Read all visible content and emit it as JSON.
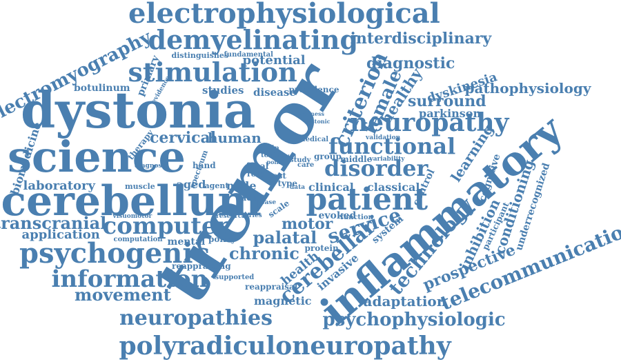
{
  "colors": {
    "word": "#4a7fb0",
    "background": "#ffffff"
  },
  "words": [
    "electrophysiological",
    "demyelinating",
    "interdisciplinary",
    "stimulation",
    "diagnostic",
    "electromyography",
    "potential",
    "tremor",
    "dystonia",
    "criterion",
    "female",
    "healthy",
    "dyskinesia",
    "pathophysiology",
    "surround",
    "parkinson",
    "neuropathy",
    "science",
    "functional",
    "disorder",
    "cervical",
    "human",
    "learning",
    "biomedicine",
    "cerebellum",
    "patient",
    "inflammatory",
    "laboratory",
    "transcranial",
    "computer",
    "motor",
    "service",
    "technology",
    "inhibition",
    "conditioning",
    "underrecognized",
    "application",
    "psychogenic",
    "chronic",
    "cerebellar",
    "information",
    "prospective",
    "telecommunication",
    "movement",
    "adaptation",
    "neuropathies",
    "psychophysiologic",
    "polyradiculoneuropathy",
    "botulinum",
    "primary",
    "studies",
    "disease",
    "distinguishes",
    "fundamental",
    "evidence",
    "magnetic",
    "palatal",
    "classical",
    "clinical",
    "aged",
    "male",
    "adult",
    "health",
    "invasive",
    "system",
    "control",
    "cognitive",
    "participant",
    "mental",
    "policy",
    "muscle",
    "diagnosis",
    "spectrum",
    "hand",
    "focal",
    "role",
    "brain",
    "toxin",
    "study",
    "care",
    "group",
    "middle",
    "evoked",
    "function",
    "protein",
    "supported",
    "reappraisal",
    "reappraising",
    "computation",
    "visuomotor",
    "therapy",
    "prevalence",
    "wellness",
    "dystonic",
    "medical",
    "validation",
    "variability",
    "type",
    "test",
    "scale",
    "series",
    "research",
    "case",
    "agent",
    "point",
    "data",
    "glial"
  ]
}
